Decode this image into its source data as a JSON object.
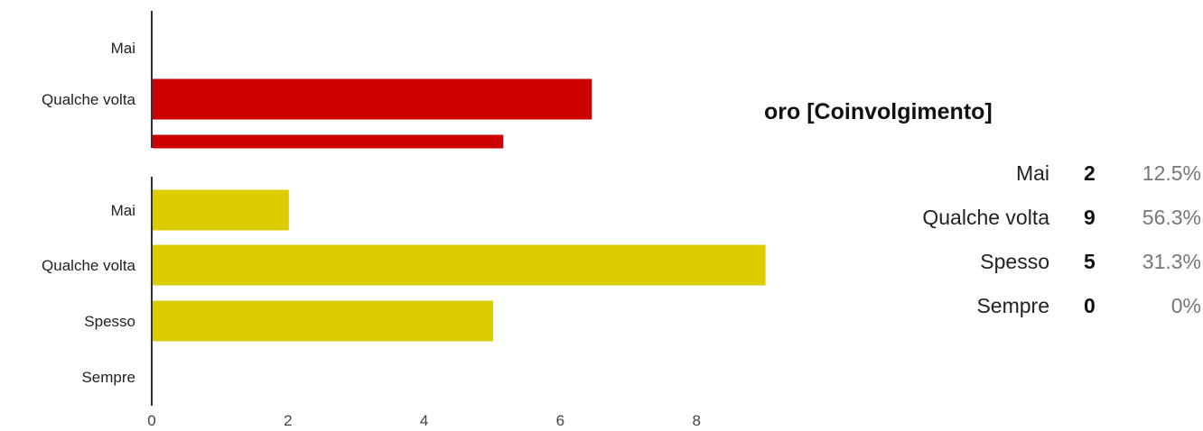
{
  "chart_data": [
    {
      "type": "bar",
      "orientation": "horizontal",
      "color": "#cc0000",
      "categories": [
        "Mai",
        "Qualche volta",
        ""
      ],
      "values": [
        0,
        6.45,
        5.15
      ]
    },
    {
      "type": "bar",
      "orientation": "horizontal",
      "color": "#dccc00",
      "categories": [
        "Mai",
        "Qualche volta",
        "Spesso",
        "Sempre"
      ],
      "values": [
        2,
        9,
        5,
        0
      ],
      "xticks": [
        0,
        2,
        4,
        6,
        8
      ],
      "xlim": [
        0,
        9
      ]
    }
  ],
  "summary": {
    "title": "oro [Coinvolgimento]",
    "rows": [
      {
        "label": "Mai",
        "count": "2",
        "percent": "12.5%"
      },
      {
        "label": "Qualche volta",
        "count": "9",
        "percent": "56.3%"
      },
      {
        "label": "Spesso",
        "count": "5",
        "percent": "31.3%"
      },
      {
        "label": "Sempre",
        "count": "0",
        "percent": "0%"
      }
    ]
  },
  "axis_color": "#333333"
}
